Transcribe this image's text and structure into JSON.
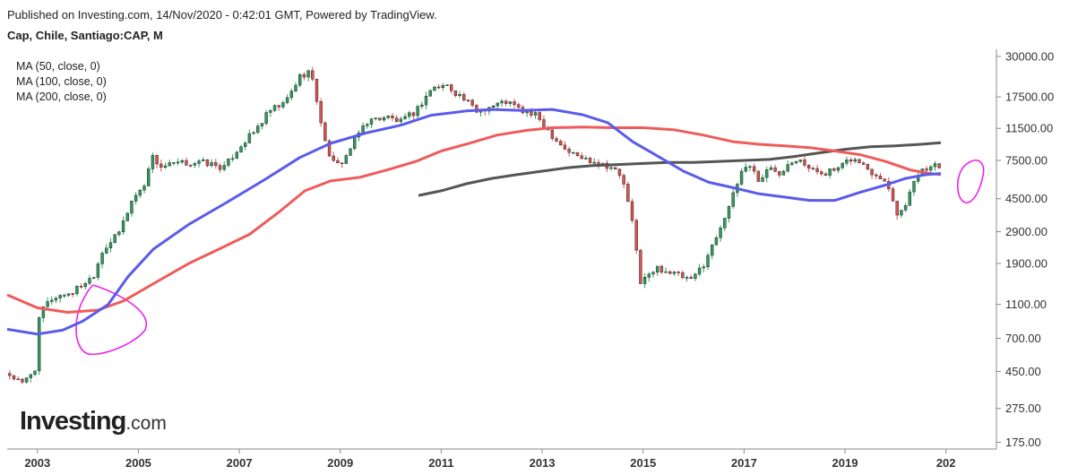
{
  "header": {
    "published": "Published on Investing.com, 14/Nov/2020 - 0:42:01 GMT, Powered by TradingView.",
    "symbol": "Cap, Chile, Santiago:CAP, M"
  },
  "indicators": {
    "ma50": "MA (50, close, 0)",
    "ma100": "MA (100, close, 0)",
    "ma200": "MA (200, close, 0)"
  },
  "logo": {
    "main": "Investing",
    "suffix": ".com"
  },
  "chart_data": {
    "type": "candlestick",
    "interval": "monthly",
    "y_scale": "log",
    "ylim": [
      160,
      33000
    ],
    "xlim": [
      2002.4,
      2022.0
    ],
    "y_ticks": [
      "30000.00",
      "17500.00",
      "11500.00",
      "7500.00",
      "4500.00",
      "2900.00",
      "1900.00",
      "1100.00",
      "700.00",
      "450.00",
      "275.00",
      "175.00"
    ],
    "x_ticks": [
      "2003",
      "2005",
      "2007",
      "2009",
      "2011",
      "2013",
      "2015",
      "2017",
      "2019",
      "202"
    ],
    "colors": {
      "up": "#2e9e5e",
      "down": "#d9534f",
      "ma50": "#5b5bea",
      "ma100": "#ef5b5b",
      "ma200": "#555555",
      "annotation": "#ee22ee"
    },
    "close_path": [
      [
        2002.45,
        430
      ],
      [
        2002.7,
        380
      ],
      [
        2002.95,
        470
      ],
      [
        2003.05,
        1000
      ],
      [
        2003.3,
        1200
      ],
      [
        2003.7,
        1300
      ],
      [
        2003.9,
        1450
      ],
      [
        2004.1,
        1600
      ],
      [
        2004.3,
        2300
      ],
      [
        2004.6,
        2800
      ],
      [
        2004.9,
        4600
      ],
      [
        2005.1,
        5200
      ],
      [
        2005.25,
        8000
      ],
      [
        2005.45,
        6900
      ],
      [
        2005.8,
        7200
      ],
      [
        2006.3,
        7300
      ],
      [
        2006.7,
        6800
      ],
      [
        2007.0,
        9000
      ],
      [
        2007.3,
        11000
      ],
      [
        2007.6,
        14500
      ],
      [
        2007.9,
        16000
      ],
      [
        2008.2,
        23000
      ],
      [
        2008.4,
        25000
      ],
      [
        2008.55,
        16000
      ],
      [
        2008.7,
        9500
      ],
      [
        2008.9,
        6800
      ],
      [
        2009.1,
        7800
      ],
      [
        2009.3,
        10000
      ],
      [
        2009.5,
        12500
      ],
      [
        2009.7,
        13000
      ],
      [
        2009.9,
        13500
      ],
      [
        2010.2,
        12500
      ],
      [
        2010.5,
        14500
      ],
      [
        2010.8,
        19500
      ],
      [
        2011.1,
        20500
      ],
      [
        2011.4,
        17500
      ],
      [
        2011.7,
        14500
      ],
      [
        2012.0,
        15500
      ],
      [
        2012.3,
        16500
      ],
      [
        2012.6,
        14500
      ],
      [
        2012.9,
        13500
      ],
      [
        2013.2,
        10500
      ],
      [
        2013.5,
        8500
      ],
      [
        2013.8,
        7700
      ],
      [
        2014.1,
        7400
      ],
      [
        2014.4,
        6800
      ],
      [
        2014.6,
        5800
      ],
      [
        2014.8,
        3100
      ],
      [
        2014.95,
        1500
      ],
      [
        2015.1,
        1600
      ],
      [
        2015.3,
        1800
      ],
      [
        2015.5,
        1700
      ],
      [
        2015.75,
        1600
      ],
      [
        2015.95,
        1500
      ],
      [
        2016.2,
        1900
      ],
      [
        2016.4,
        2500
      ],
      [
        2016.6,
        3500
      ],
      [
        2016.8,
        4800
      ],
      [
        2016.95,
        6500
      ],
      [
        2017.1,
        7200
      ],
      [
        2017.3,
        5700
      ],
      [
        2017.5,
        6800
      ],
      [
        2017.7,
        6400
      ],
      [
        2017.9,
        7400
      ],
      [
        2018.1,
        7900
      ],
      [
        2018.3,
        6600
      ],
      [
        2018.6,
        6400
      ],
      [
        2018.9,
        6700
      ],
      [
        2019.1,
        7700
      ],
      [
        2019.3,
        7300
      ],
      [
        2019.5,
        6500
      ],
      [
        2019.7,
        6100
      ],
      [
        2019.9,
        5100
      ],
      [
        2020.05,
        3500
      ],
      [
        2020.25,
        4600
      ],
      [
        2020.45,
        6300
      ],
      [
        2020.6,
        6600
      ],
      [
        2020.75,
        7300
      ],
      [
        2020.87,
        7000
      ]
    ],
    "ma50_path": [
      [
        2002.4,
        790
      ],
      [
        2003.0,
        740
      ],
      [
        2003.5,
        780
      ],
      [
        2003.9,
        880
      ],
      [
        2004.4,
        1100
      ],
      [
        2004.8,
        1600
      ],
      [
        2005.3,
        2300
      ],
      [
        2006.0,
        3200
      ],
      [
        2006.7,
        4200
      ],
      [
        2007.5,
        5800
      ],
      [
        2008.2,
        7800
      ],
      [
        2008.8,
        9400
      ],
      [
        2009.5,
        10800
      ],
      [
        2010.2,
        12000
      ],
      [
        2010.8,
        13700
      ],
      [
        2011.5,
        14500
      ],
      [
        2012.0,
        14800
      ],
      [
        2012.6,
        14600
      ],
      [
        2013.2,
        14800
      ],
      [
        2013.8,
        13800
      ],
      [
        2014.3,
        12400
      ],
      [
        2014.8,
        9600
      ],
      [
        2015.3,
        7900
      ],
      [
        2015.8,
        6500
      ],
      [
        2016.3,
        5600
      ],
      [
        2016.8,
        5200
      ],
      [
        2017.3,
        4800
      ],
      [
        2017.8,
        4600
      ],
      [
        2018.3,
        4400
      ],
      [
        2018.8,
        4400
      ],
      [
        2019.3,
        4900
      ],
      [
        2019.8,
        5400
      ],
      [
        2020.2,
        5900
      ],
      [
        2020.6,
        6200
      ],
      [
        2020.9,
        6300
      ]
    ],
    "ma100_path": [
      [
        2002.4,
        1250
      ],
      [
        2003.0,
        1050
      ],
      [
        2003.6,
        990
      ],
      [
        2004.2,
        1020
      ],
      [
        2004.7,
        1150
      ],
      [
        2005.3,
        1450
      ],
      [
        2006.0,
        1900
      ],
      [
        2006.6,
        2300
      ],
      [
        2007.2,
        2800
      ],
      [
        2007.8,
        3800
      ],
      [
        2008.3,
        5000
      ],
      [
        2008.8,
        5700
      ],
      [
        2009.4,
        6000
      ],
      [
        2010.0,
        6700
      ],
      [
        2010.5,
        7400
      ],
      [
        2011.0,
        8500
      ],
      [
        2011.6,
        9500
      ],
      [
        2012.1,
        10500
      ],
      [
        2012.7,
        11200
      ],
      [
        2013.2,
        11600
      ],
      [
        2013.8,
        11700
      ],
      [
        2014.4,
        11600
      ],
      [
        2015.0,
        11600
      ],
      [
        2015.6,
        11300
      ],
      [
        2016.2,
        10500
      ],
      [
        2016.8,
        9600
      ],
      [
        2017.3,
        9300
      ],
      [
        2017.8,
        9100
      ],
      [
        2018.3,
        8900
      ],
      [
        2018.8,
        8500
      ],
      [
        2019.3,
        8100
      ],
      [
        2019.8,
        7400
      ],
      [
        2020.3,
        6600
      ],
      [
        2020.7,
        6300
      ],
      [
        2020.9,
        6200
      ]
    ],
    "ma200_path": [
      [
        2010.55,
        4700
      ],
      [
        2011.0,
        5000
      ],
      [
        2011.5,
        5500
      ],
      [
        2012.0,
        5900
      ],
      [
        2012.5,
        6200
      ],
      [
        2013.0,
        6500
      ],
      [
        2013.5,
        6800
      ],
      [
        2014.0,
        7000
      ],
      [
        2014.5,
        7100
      ],
      [
        2015.0,
        7200
      ],
      [
        2015.5,
        7300
      ],
      [
        2016.0,
        7300
      ],
      [
        2016.5,
        7400
      ],
      [
        2017.0,
        7500
      ],
      [
        2017.5,
        7600
      ],
      [
        2018.0,
        7900
      ],
      [
        2018.5,
        8300
      ],
      [
        2019.0,
        8700
      ],
      [
        2019.5,
        9000
      ],
      [
        2020.0,
        9100
      ],
      [
        2020.5,
        9300
      ],
      [
        2020.9,
        9500
      ]
    ]
  }
}
